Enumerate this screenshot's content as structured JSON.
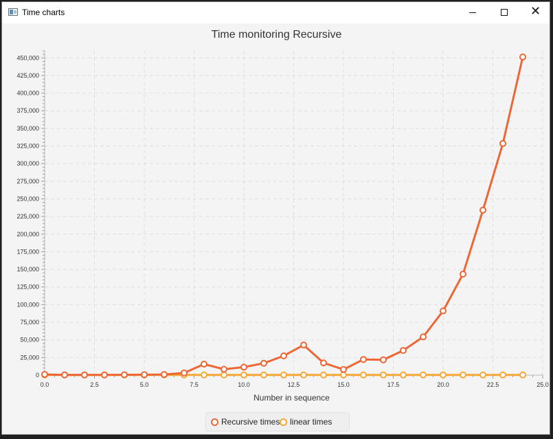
{
  "window": {
    "title": "Time charts",
    "app_icon": "chart-window-icon",
    "controls": {
      "minimize_icon": "minimize-icon",
      "maximize_icon": "maximize-icon",
      "close_icon": "close-icon",
      "close_glyph": "✕"
    }
  },
  "chart_data": {
    "type": "line",
    "title": "Time monitoring Recursive",
    "xlabel": "Number in sequence",
    "ylabel": "",
    "xlim": [
      0,
      25
    ],
    "ylim": [
      0,
      460000
    ],
    "x_ticks": [
      0,
      2.5,
      5,
      7.5,
      10,
      12.5,
      15,
      17.5,
      20,
      22.5,
      25
    ],
    "x_tick_labels": [
      "0.0",
      "2.5",
      "5.0",
      "7.5",
      "10.0",
      "12.5",
      "15.0",
      "17.5",
      "20.0",
      "22.5",
      "25.0"
    ],
    "y_ticks": [
      0,
      25000,
      50000,
      75000,
      100000,
      125000,
      150000,
      175000,
      200000,
      225000,
      250000,
      275000,
      300000,
      325000,
      350000,
      375000,
      400000,
      425000,
      450000
    ],
    "y_tick_labels": [
      "0",
      "25,000",
      "50,000",
      "75,000",
      "100,000",
      "125,000",
      "150,000",
      "175,000",
      "200,000",
      "225,000",
      "250,000",
      "275,000",
      "300,000",
      "325,000",
      "350,000",
      "375,000",
      "400,000",
      "425,000",
      "450,000"
    ],
    "grid": true,
    "legend_position": "bottom-center",
    "x": [
      0,
      1,
      2,
      3,
      4,
      5,
      6,
      7,
      8,
      9,
      10,
      11,
      12,
      13,
      14,
      15,
      16,
      17,
      18,
      19,
      20,
      21,
      22,
      23,
      24
    ],
    "series": [
      {
        "name": "Recursive times",
        "color": "#ee6633",
        "values": [
          1000,
          300,
          300,
          300,
          500,
          600,
          900,
          3100,
          15600,
          8300,
          11300,
          16800,
          27300,
          42700,
          17300,
          8000,
          22200,
          21700,
          35000,
          54200,
          91000,
          143300,
          234000,
          328500,
          451300
        ]
      },
      {
        "name": "linear times",
        "color": "#f6a736",
        "values": [
          200,
          200,
          200,
          200,
          200,
          200,
          200,
          200,
          200,
          200,
          200,
          200,
          200,
          200,
          200,
          200,
          200,
          200,
          200,
          200,
          200,
          200,
          200,
          200,
          200
        ]
      }
    ]
  }
}
